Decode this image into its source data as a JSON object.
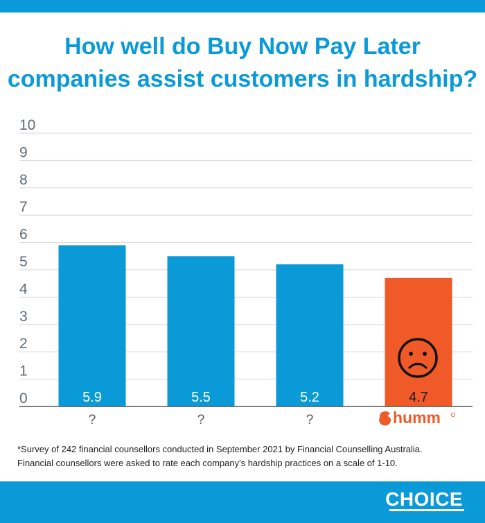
{
  "header": {
    "title_line1": "How well do Buy Now Pay Later",
    "title_line2": "companies assist customers in hardship?"
  },
  "colors": {
    "primary": "#0a9ad8",
    "highlight": "#f05a28",
    "grid": "#d6d6d6",
    "axis": "#555555",
    "tick_text": "#616a74"
  },
  "chart_data": {
    "type": "bar",
    "title": "How well do Buy Now Pay Later companies assist customers in hardship?",
    "xlabel": "",
    "ylabel": "",
    "ylim": [
      0,
      10
    ],
    "yticks": [
      "0",
      "1",
      "2",
      "3",
      "4",
      "5",
      "6",
      "7",
      "8",
      "9",
      "10"
    ],
    "grid": true,
    "categories": [
      "?",
      "?",
      "?",
      "humm"
    ],
    "values": [
      5.9,
      5.5,
      5.2,
      4.7
    ],
    "value_labels": [
      "5.9",
      "5.5",
      "5.2",
      "4.7"
    ],
    "highlight_index": 3,
    "highlight_icon": "sad-face-icon",
    "highlight_logo": "humm-logo"
  },
  "footnote": {
    "line1": "*Survey of 242 financial counsellors conducted in September 2021 by Financial Counselling Australia.",
    "line2": "Financial counsellors were asked to rate each company's hardship practices on a scale of 1-10."
  },
  "footer": {
    "brand": "CHOICE"
  }
}
